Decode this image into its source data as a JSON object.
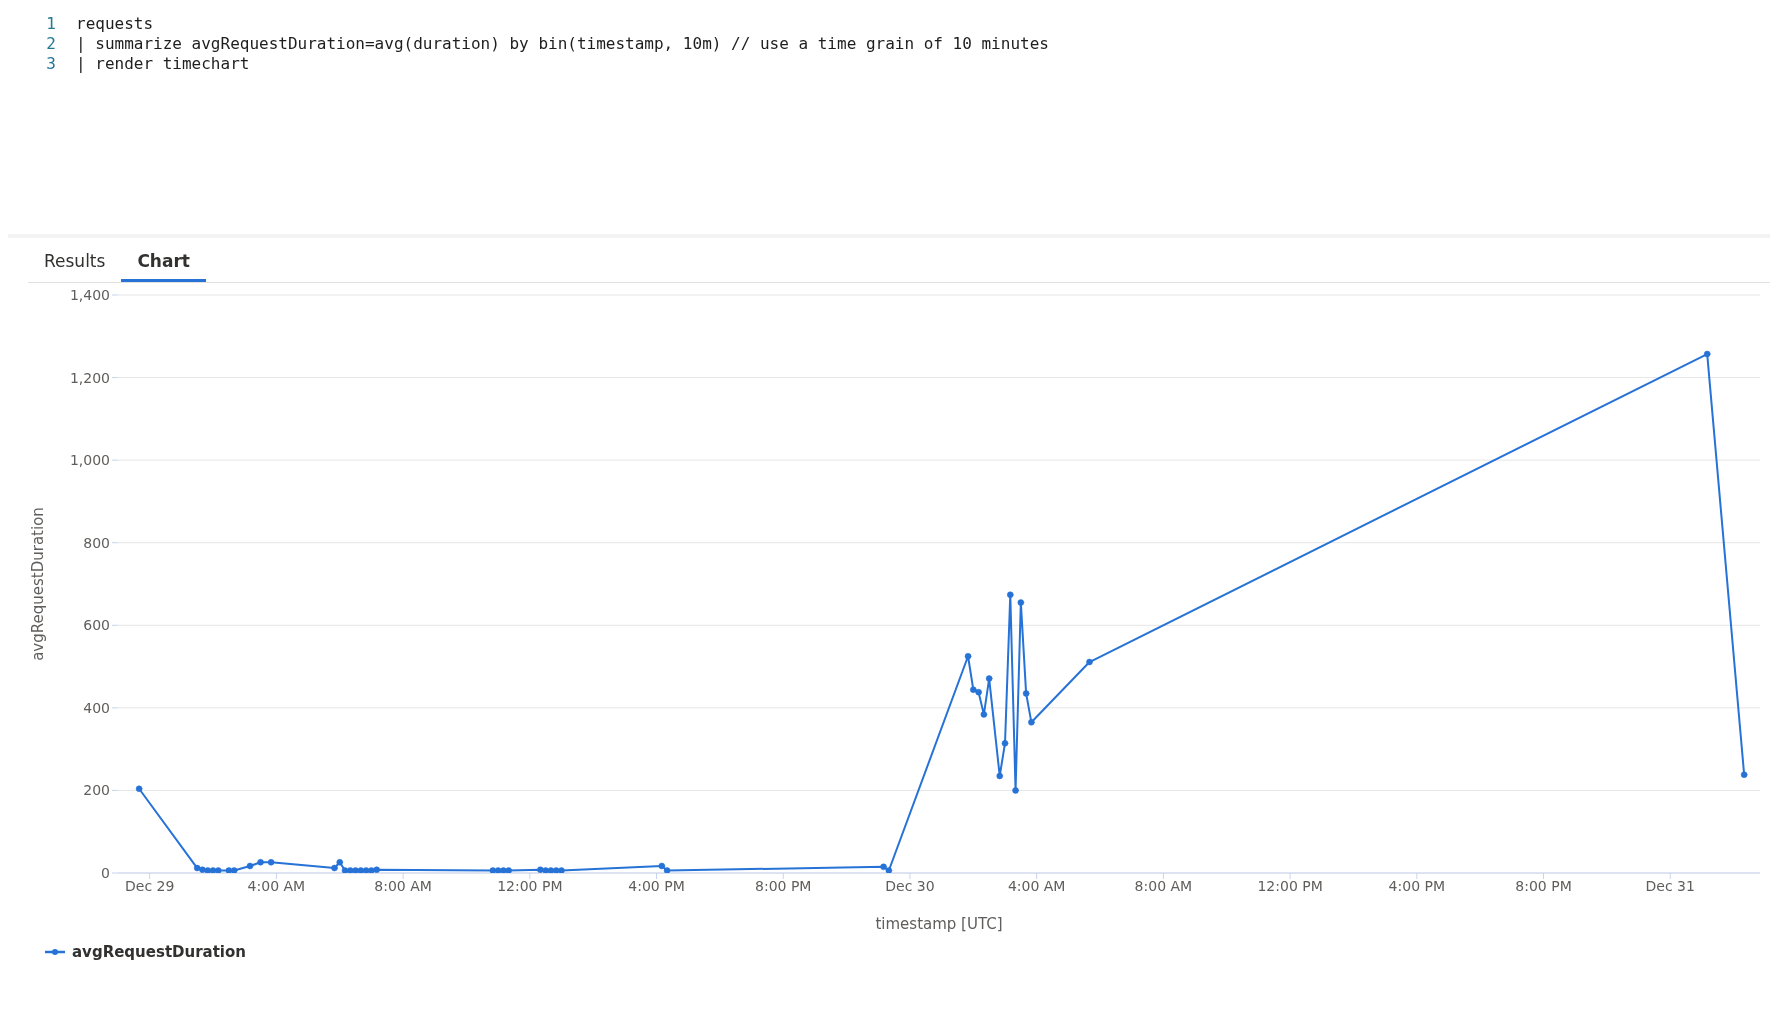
{
  "chart_data": {
    "type": "line",
    "annotations": [
      "1",
      "requests",
      "2",
      "| summarize avgRequestDuration=avg(duration) by bin(timestamp, 10m) // use a time grain of 10 minutes",
      "3",
      "| render timechart",
      "Results",
      "Chart"
    ],
    "xlabel": "timestamp [UTC]",
    "ylabel": "avgRequestDuration",
    "x": [
      "--12-28T23:40",
      "--12-29T01:30",
      "--12-29T01:40",
      "--12-29T01:50",
      "--12-29T02:00",
      "--12-29T02:10",
      "--12-29T02:30",
      "--12-29T02:40",
      "--12-29T03:10",
      "--12-29T03:30",
      "--12-29T03:50",
      "--12-29T05:50",
      "--12-29T06:00",
      "--12-29T06:10",
      "--12-29T06:20",
      "--12-29T06:30",
      "--12-29T06:40",
      "--12-29T06:50",
      "--12-29T07:00",
      "--12-29T07:10",
      "--12-29T10:50",
      "--12-29T11:00",
      "--12-29T11:10",
      "--12-29T11:20",
      "--12-29T12:20",
      "--12-29T12:30",
      "--12-29T12:40",
      "--12-29T12:50",
      "--12-29T13:00",
      "--12-29T16:10",
      "--12-29T16:20",
      "--12-29T23:10",
      "--12-29T23:20",
      "--12-30T01:50",
      "--12-30T02:00",
      "--12-30T02:10",
      "--12-30T02:20",
      "--12-30T02:30",
      "--12-30T02:50",
      "--12-30T03:00",
      "--12-30T03:10",
      "--12-30T03:20",
      "--12-30T03:30",
      "--12-30T03:40",
      "--12-30T03:50",
      "--12-30T05:40",
      "--12-31T01:10",
      "--12-31T02:20"
    ],
    "series": [
      {
        "name": "avgRequestDuration",
        "color": "#2672d6",
        "values": [
          204,
          12,
          8,
          6,
          6,
          6,
          6,
          6,
          17,
          26,
          26,
          12,
          26,
          6,
          6,
          6,
          6,
          6,
          6,
          8,
          6,
          6,
          6,
          6,
          8,
          6,
          6,
          6,
          6,
          17,
          6,
          15,
          6,
          525,
          444,
          438,
          384,
          471,
          235,
          314,
          674,
          200,
          655,
          435,
          365,
          511,
          1257,
          238
        ]
      }
    ],
    "xlim": [
      "--12-28T23:00",
      "--12-31T02:50"
    ],
    "xticks": [
      {
        "value": "--12-29T00:00",
        "label": "Dec 29"
      },
      {
        "value": "--12-29T04:00",
        "label": "4:00 AM"
      },
      {
        "value": "--12-29T08:00",
        "label": "8:00 AM"
      },
      {
        "value": "--12-29T12:00",
        "label": "12:00 PM"
      },
      {
        "value": "--12-29T16:00",
        "label": "4:00 PM"
      },
      {
        "value": "--12-29T20:00",
        "label": "8:00 PM"
      },
      {
        "value": "--12-30T00:00",
        "label": "Dec 30"
      },
      {
        "value": "--12-30T04:00",
        "label": "4:00 AM"
      },
      {
        "value": "--12-30T08:00",
        "label": "8:00 AM"
      },
      {
        "value": "--12-30T12:00",
        "label": "12:00 PM"
      },
      {
        "value": "--12-30T16:00",
        "label": "4:00 PM"
      },
      {
        "value": "--12-30T20:00",
        "label": "8:00 PM"
      },
      {
        "value": "--12-31T00:00",
        "label": "Dec 31"
      }
    ],
    "ylim": [
      0,
      1400
    ],
    "yticks": [
      0,
      200,
      400,
      600,
      800,
      {
        "value": 1000,
        "label": "1,000"
      },
      {
        "value": 1200,
        "label": "1,200"
      },
      {
        "value": 1400,
        "label": "1,400"
      }
    ],
    "grid": "y",
    "legend": "bottom left",
    "marker": "circle",
    "line_style": "solid"
  }
}
